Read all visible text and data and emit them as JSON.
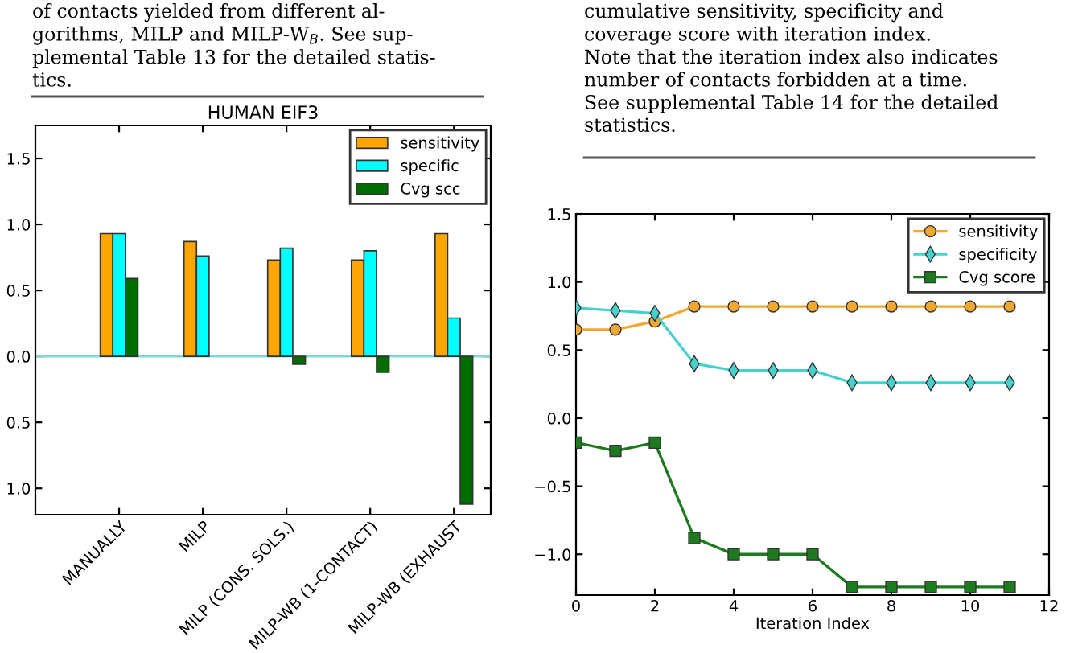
{
  "chart_data": [
    {
      "type": "bar",
      "title": "HUMAN EIF3",
      "annotations": [
        "of contacts yielded from different al-\ngorithms, MILP and MILP-W$_{B}$. See sup-\nplemental Table 13 for the detailed statis-\ntics."
      ],
      "categories": [
        "MANUALLY",
        "MILP",
        "MILP (CONS. SOLS.)",
        "MILP-WB (1-CONTACT)",
        "MILP-WB (EXHAUST"
      ],
      "series": [
        {
          "name": "sensitivity",
          "color": "#ffa500",
          "values": [
            0.93,
            0.87,
            0.73,
            0.73,
            0.93
          ]
        },
        {
          "name": "specific",
          "color": "#00ffff",
          "values": [
            0.93,
            0.76,
            0.82,
            0.8,
            0.29
          ]
        },
        {
          "name": "Cvg scc",
          "color": "#006d00",
          "values": [
            0.59,
            null,
            -0.06,
            -0.12,
            -1.12
          ]
        }
      ],
      "ylim": [
        -1.2,
        1.75
      ],
      "yticks": [
        {
          "value": -1.0,
          "label": "1.0"
        },
        {
          "value": -0.5,
          "label": "0.5"
        },
        {
          "value": 0,
          "label": "0.0"
        },
        {
          "value": 0.5,
          "label": "0.5"
        },
        {
          "value": 1,
          "label": "1.0"
        },
        {
          "value": 1.5,
          "label": "1.5"
        }
      ],
      "ref_lines": [
        {
          "axis": "y",
          "value": 0,
          "color": "#7fd8d8"
        }
      ],
      "grid": false,
      "legend": "top right"
    },
    {
      "type": "line",
      "annotations": [
        "cumulative sensitivity, specificity and\ncoverage score with iteration index.\nNote that the iteration index also indicates\nnumber of contacts forbidden at a time.\nSee supplemental Table 14 for the detailed\nstatistics."
      ],
      "xlabel": "Iteration Index",
      "x": [
        0,
        1,
        2,
        3,
        4,
        5,
        6,
        7,
        8,
        9,
        10,
        11
      ],
      "series": [
        {
          "name": "sensitivity",
          "color": "#f0a830",
          "marker": "circle",
          "values": [
            0.65,
            0.65,
            0.71,
            0.82,
            0.82,
            0.82,
            0.82,
            0.82,
            0.82,
            0.82,
            0.82,
            0.82
          ]
        },
        {
          "name": "specificity",
          "color": "#48d1cc",
          "marker": "diamond",
          "values": [
            0.81,
            0.79,
            0.77,
            0.4,
            0.35,
            0.35,
            0.35,
            0.26,
            0.26,
            0.26,
            0.26,
            0.26
          ]
        },
        {
          "name": "Cvg score",
          "color": "#1e7a1e",
          "marker": "square",
          "values": [
            -0.18,
            -0.24,
            -0.18,
            -0.88,
            -1.0,
            -1.0,
            -1.0,
            -1.24,
            -1.24,
            -1.24,
            -1.24,
            -1.24
          ]
        }
      ],
      "xlim": [
        0,
        12
      ],
      "xticks": [
        0,
        2,
        4,
        6,
        8,
        10,
        12
      ],
      "ylim": [
        -1.3,
        1.5
      ],
      "yticks": [
        {
          "value": -1.0,
          "label": "−1.0"
        },
        {
          "value": -0.5,
          "label": "−0.5"
        },
        {
          "value": 0,
          "label": "0.0"
        },
        {
          "value": 0.5,
          "label": "0.5"
        },
        {
          "value": 1,
          "label": "1.0"
        },
        {
          "value": 1.5,
          "label": "1.5"
        }
      ],
      "line_style": "solid",
      "grid": false,
      "legend": "top right"
    }
  ]
}
